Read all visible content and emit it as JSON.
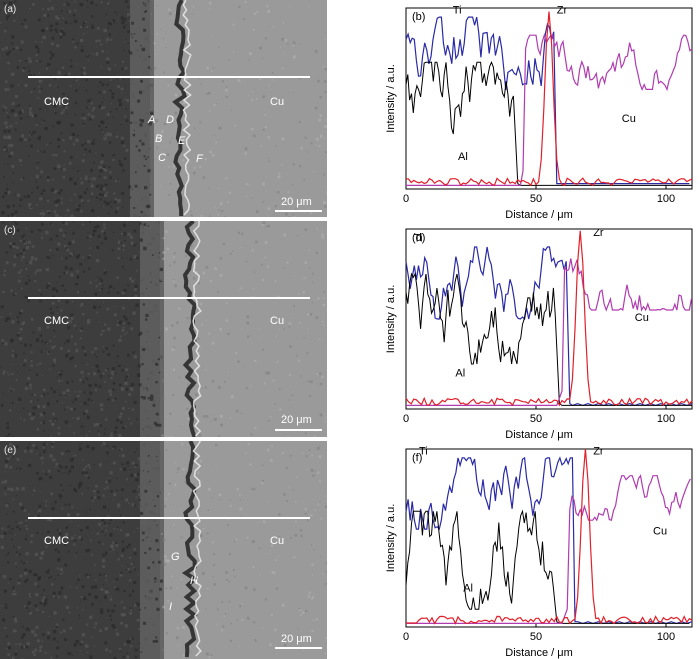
{
  "panels": {
    "a": {
      "label": "(a)",
      "left_material": "CMC",
      "right_material": "Cu",
      "points": [
        {
          "id": "A"
        },
        {
          "id": "B"
        },
        {
          "id": "C"
        },
        {
          "id": "D"
        },
        {
          "id": "E"
        },
        {
          "id": "F"
        }
      ],
      "scale_bar": "20 μm"
    },
    "c": {
      "label": "(c)",
      "left_material": "CMC",
      "right_material": "Cu",
      "points": [],
      "scale_bar": "20 μm"
    },
    "e": {
      "label": "(e)",
      "left_material": "CMC",
      "right_material": "Cu",
      "points": [
        {
          "id": "G"
        },
        {
          "id": "H"
        },
        {
          "id": "I"
        }
      ],
      "scale_bar": "20 μm"
    }
  },
  "colors": {
    "Ti": "#2a2aa6",
    "Zr": "#e0202a",
    "Cu": "#b03cb0",
    "Al": "#000000",
    "sem_bg_left": "#3d3d3d",
    "sem_bg_right": "#9a9a9a"
  },
  "chart_data": [
    {
      "type": "line",
      "panel_label": "(b)",
      "xlabel": "Distance / μm",
      "ylabel": "Intensity / a.u.",
      "xticks": [
        "0",
        "50",
        "100"
      ],
      "xlim": [
        0,
        110
      ],
      "series_labels": {
        "Ti": "Ti",
        "Zr": "Zr",
        "Cu": "Cu",
        "Al": "Al"
      },
      "annotations": {
        "Ti": [
          18,
          0.97
        ],
        "Zr": [
          58,
          0.97
        ],
        "Cu": [
          83,
          0.37
        ],
        "Al": [
          20,
          0.16
        ]
      },
      "bounds": {
        "Ti_end": 57,
        "Al_end": 42,
        "Cu_start": 45,
        "Zr_peak": 55
      },
      "series": [
        {
          "name": "Ti",
          "x_range": [
            0,
            57
          ],
          "level": [
            0.45,
            0.95
          ]
        },
        {
          "name": "Al",
          "x_range": [
            0,
            42
          ],
          "level": [
            0.2,
            0.7
          ]
        },
        {
          "name": "Zr",
          "x_range": [
            0,
            110
          ],
          "peak_x": 55,
          "peak": 0.98
        },
        {
          "name": "Cu",
          "x_range": [
            45,
            110
          ],
          "level": [
            0.55,
            0.85
          ]
        }
      ]
    },
    {
      "type": "line",
      "panel_label": "(d)",
      "xlabel": "Distance / μm",
      "ylabel": "Intensity / a.u.",
      "xticks": [
        "0",
        "50",
        "100"
      ],
      "xlim": [
        0,
        110
      ],
      "series_labels": {
        "Ti": "Ti",
        "Zr": "Zr",
        "Cu": "Cu",
        "Al": "Al"
      },
      "annotations": {
        "Ti": [
          3,
          0.93
        ],
        "Zr": [
          72,
          0.96
        ],
        "Cu": [
          88,
          0.49
        ],
        "Al": [
          19,
          0.18
        ]
      },
      "bounds": {
        "Ti_end": 62,
        "Al_end": 58,
        "Cu_start": 60,
        "Zr_peak": 67
      },
      "series": [
        {
          "name": "Ti",
          "x_range": [
            0,
            62
          ],
          "level": [
            0.5,
            0.9
          ]
        },
        {
          "name": "Al",
          "x_range": [
            0,
            58
          ],
          "level": [
            0.25,
            0.75
          ]
        },
        {
          "name": "Zr",
          "x_range": [
            0,
            110
          ],
          "peak_x": 67,
          "peak": 0.99
        },
        {
          "name": "Cu",
          "x_range": [
            60,
            110
          ],
          "level": [
            0.55,
            0.85
          ]
        }
      ]
    },
    {
      "type": "line",
      "panel_label": "(f)",
      "xlabel": "Distance / μm",
      "ylabel": "Intensity / a.u.",
      "xticks": [
        "0",
        "50",
        "100"
      ],
      "xlim": [
        0,
        110
      ],
      "series_labels": {
        "Ti": "Ti",
        "Zr": "Zr",
        "Cu": "Cu",
        "Al": "Al"
      },
      "annotations": {
        "Ti": [
          5,
          0.97
        ],
        "Zr": [
          72,
          0.97
        ],
        "Cu": [
          95,
          0.52
        ],
        "Al": [
          22,
          0.2
        ]
      },
      "bounds": {
        "Ti_end": 64,
        "Al_end": 57,
        "Cu_start": 62,
        "Zr_peak": 69
      },
      "series": [
        {
          "name": "Ti",
          "x_range": [
            0,
            64
          ],
          "level": [
            0.55,
            0.95
          ]
        },
        {
          "name": "Al",
          "x_range": [
            0,
            57
          ],
          "level": [
            0.1,
            0.65
          ]
        },
        {
          "name": "Zr",
          "x_range": [
            0,
            110
          ],
          "peak_x": 69,
          "peak": 1.0
        },
        {
          "name": "Cu",
          "x_range": [
            62,
            110
          ],
          "level": [
            0.6,
            0.85
          ]
        }
      ]
    }
  ]
}
